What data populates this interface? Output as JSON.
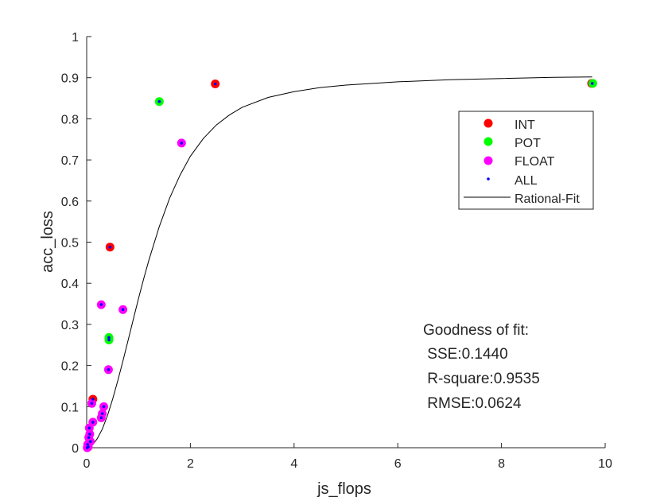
{
  "chart_data": {
    "type": "scatter",
    "xlabel": "js_flops",
    "ylabel": "acc_loss",
    "xlim": [
      0,
      10
    ],
    "ylim": [
      0,
      1
    ],
    "xticks": [
      0,
      2,
      4,
      6,
      8,
      10
    ],
    "xtick_labels": [
      "0",
      "2",
      "4",
      "6",
      "8",
      "10"
    ],
    "yticks": [
      0,
      0.1,
      0.2,
      0.3,
      0.4,
      0.5,
      0.6,
      0.7,
      0.8,
      0.9,
      1
    ],
    "ytick_labels": [
      "0",
      "0.1",
      "0.2",
      "0.3",
      "0.4",
      "0.5",
      "0.6",
      "0.7",
      "0.8",
      "0.9",
      "1"
    ],
    "grid": false,
    "legend_position": "upper-right",
    "series": [
      {
        "name": "INT",
        "marker": "circle",
        "color": "#ff0000",
        "points": [
          [
            2.48,
            0.885
          ],
          [
            0.45,
            0.488
          ],
          [
            0.12,
            0.118
          ],
          [
            9.74,
            0.886
          ]
        ]
      },
      {
        "name": "POT",
        "marker": "circle",
        "color": "#00ff00",
        "points": [
          [
            1.4,
            0.842
          ],
          [
            0.43,
            0.268
          ],
          [
            0.43,
            0.262
          ],
          [
            9.76,
            0.886
          ]
        ]
      },
      {
        "name": "FLOAT",
        "marker": "circle",
        "color": "#ff00ff",
        "points": [
          [
            1.83,
            0.741
          ],
          [
            0.28,
            0.348
          ],
          [
            0.7,
            0.336
          ],
          [
            0.42,
            0.19
          ],
          [
            0.1,
            0.108
          ],
          [
            0.33,
            0.1
          ],
          [
            0.3,
            0.083
          ],
          [
            0.28,
            0.073
          ],
          [
            0.12,
            0.062
          ],
          [
            0.05,
            0.048
          ],
          [
            0.06,
            0.033
          ],
          [
            0.04,
            0.025
          ],
          [
            0.07,
            0.015
          ],
          [
            0.02,
            0.008
          ],
          [
            0.03,
            0.002
          ],
          [
            0.01,
            0.0
          ]
        ]
      },
      {
        "name": "ALL",
        "marker": "dot",
        "color": "#0000ff",
        "points": [
          [
            2.48,
            0.885
          ],
          [
            1.4,
            0.842
          ],
          [
            1.83,
            0.741
          ],
          [
            0.45,
            0.488
          ],
          [
            0.28,
            0.348
          ],
          [
            0.7,
            0.336
          ],
          [
            0.43,
            0.268
          ],
          [
            0.43,
            0.262
          ],
          [
            0.42,
            0.19
          ],
          [
            0.12,
            0.118
          ],
          [
            0.1,
            0.108
          ],
          [
            0.33,
            0.1
          ],
          [
            0.3,
            0.083
          ],
          [
            0.28,
            0.073
          ],
          [
            0.12,
            0.062
          ],
          [
            0.05,
            0.048
          ],
          [
            0.06,
            0.033
          ],
          [
            0.04,
            0.025
          ],
          [
            0.07,
            0.015
          ],
          [
            0.02,
            0.008
          ],
          [
            0.03,
            0.002
          ],
          [
            0.01,
            0.0
          ],
          [
            9.75,
            0.886
          ]
        ]
      },
      {
        "name": "Rational-Fit",
        "marker": "line",
        "color": "#000000",
        "points": [
          [
            0.0,
            0.0
          ],
          [
            0.1,
            0.005
          ],
          [
            0.2,
            0.021
          ],
          [
            0.3,
            0.045
          ],
          [
            0.4,
            0.078
          ],
          [
            0.5,
            0.118
          ],
          [
            0.6,
            0.163
          ],
          [
            0.7,
            0.211
          ],
          [
            0.8,
            0.262
          ],
          [
            0.9,
            0.313
          ],
          [
            1.0,
            0.363
          ],
          [
            1.1,
            0.411
          ],
          [
            1.2,
            0.456
          ],
          [
            1.4,
            0.538
          ],
          [
            1.6,
            0.607
          ],
          [
            1.8,
            0.663
          ],
          [
            2.0,
            0.709
          ],
          [
            2.25,
            0.752
          ],
          [
            2.5,
            0.785
          ],
          [
            2.75,
            0.809
          ],
          [
            3.0,
            0.828
          ],
          [
            3.5,
            0.852
          ],
          [
            4.0,
            0.866
          ],
          [
            4.5,
            0.876
          ],
          [
            5.0,
            0.882
          ],
          [
            6.0,
            0.89
          ],
          [
            7.0,
            0.895
          ],
          [
            8.0,
            0.898
          ],
          [
            9.0,
            0.901
          ],
          [
            9.75,
            0.902
          ]
        ]
      }
    ],
    "annotation": {
      "title": "Goodness of fit:",
      "lines": [
        " SSE:0.1440",
        " R-square:0.9535",
        " RMSE:0.0624"
      ]
    }
  }
}
